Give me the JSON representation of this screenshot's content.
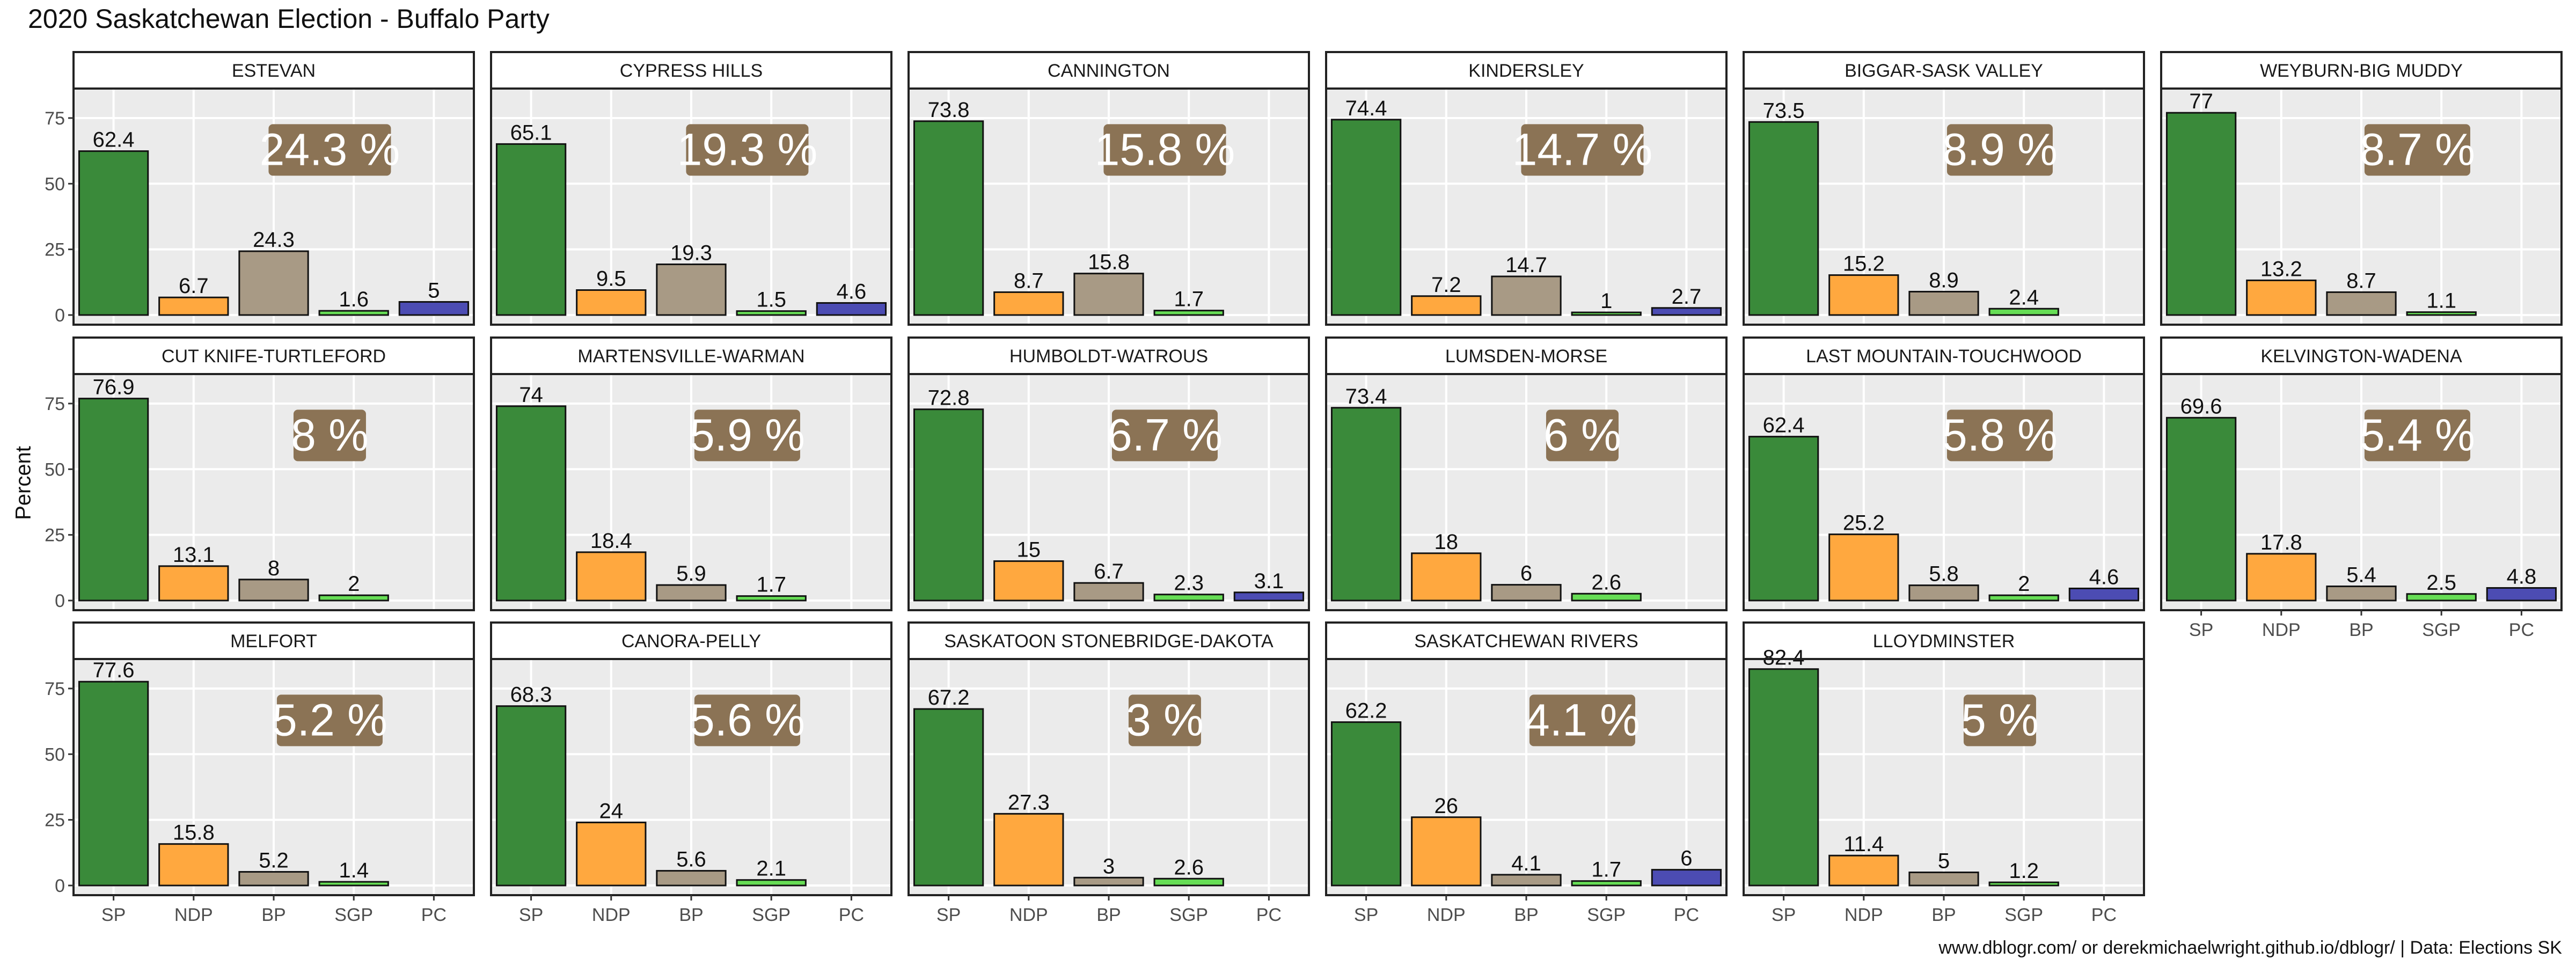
{
  "title": "2020 Saskatchewan Election - Buffalo Party",
  "caption": "www.dblogr.com/ or derekmichaelwright.github.io/dblogr/ | Data: Elections SK",
  "chart_data": {
    "type": "bar",
    "ylabel": "Percent",
    "xlabel": "",
    "ylim": [
      0,
      85
    ],
    "yticks": [
      0,
      25,
      50,
      75
    ],
    "grid": true,
    "categories": [
      "SP",
      "NDP",
      "BP",
      "SGP",
      "PC"
    ],
    "colors": {
      "SP": "#3a8a3a",
      "NDP": "#ffa83f",
      "BP": "#a89a85",
      "SGP": "#66dd55",
      "PC": "#4c4cb3",
      "badge": "#8b7355",
      "panel_bg": "#ebebeb"
    },
    "panels": [
      {
        "name": "ESTEVAN",
        "label": "24.3 %",
        "values": [
          62.4,
          6.7,
          24.3,
          1.6,
          5
        ]
      },
      {
        "name": "CYPRESS HILLS",
        "label": "19.3 %",
        "values": [
          65.1,
          9.5,
          19.3,
          1.5,
          4.6
        ]
      },
      {
        "name": "CANNINGTON",
        "label": "15.8 %",
        "values": [
          73.8,
          8.7,
          15.8,
          1.7,
          null
        ]
      },
      {
        "name": "KINDERSLEY",
        "label": "14.7 %",
        "values": [
          74.4,
          7.2,
          14.7,
          1,
          2.7
        ]
      },
      {
        "name": "BIGGAR-SASK VALLEY",
        "label": "8.9 %",
        "values": [
          73.5,
          15.2,
          8.9,
          2.4,
          null
        ]
      },
      {
        "name": "WEYBURN-BIG MUDDY",
        "label": "8.7 %",
        "values": [
          77,
          13.2,
          8.7,
          1.1,
          null
        ]
      },
      {
        "name": "CUT KNIFE-TURTLEFORD",
        "label": "8 %",
        "values": [
          76.9,
          13.1,
          8,
          2,
          null
        ]
      },
      {
        "name": "MARTENSVILLE-WARMAN",
        "label": "5.9 %",
        "values": [
          74,
          18.4,
          5.9,
          1.7,
          null
        ]
      },
      {
        "name": "HUMBOLDT-WATROUS",
        "label": "6.7 %",
        "values": [
          72.8,
          15,
          6.7,
          2.3,
          3.1
        ]
      },
      {
        "name": "LUMSDEN-MORSE",
        "label": "6 %",
        "values": [
          73.4,
          18,
          6,
          2.6,
          null
        ]
      },
      {
        "name": "LAST MOUNTAIN-TOUCHWOOD",
        "label": "5.8 %",
        "values": [
          62.4,
          25.2,
          5.8,
          2,
          4.6
        ]
      },
      {
        "name": "KELVINGTON-WADENA",
        "label": "5.4 %",
        "values": [
          69.6,
          17.8,
          5.4,
          2.5,
          4.8
        ]
      },
      {
        "name": "MELFORT",
        "label": "5.2 %",
        "values": [
          77.6,
          15.8,
          5.2,
          1.4,
          null
        ]
      },
      {
        "name": "CANORA-PELLY",
        "label": "5.6 %",
        "values": [
          68.3,
          24,
          5.6,
          2.1,
          null
        ]
      },
      {
        "name": "SASKATOON STONEBRIDGE-DAKOTA",
        "label": "3 %",
        "values": [
          67.2,
          27.3,
          3,
          2.6,
          null
        ]
      },
      {
        "name": "SASKATCHEWAN RIVERS",
        "label": "4.1 %",
        "values": [
          62.2,
          26,
          4.1,
          1.7,
          6
        ]
      },
      {
        "name": "LLOYDMINSTER",
        "label": "5 %",
        "values": [
          82.4,
          11.4,
          5,
          1.2,
          null
        ]
      }
    ]
  }
}
